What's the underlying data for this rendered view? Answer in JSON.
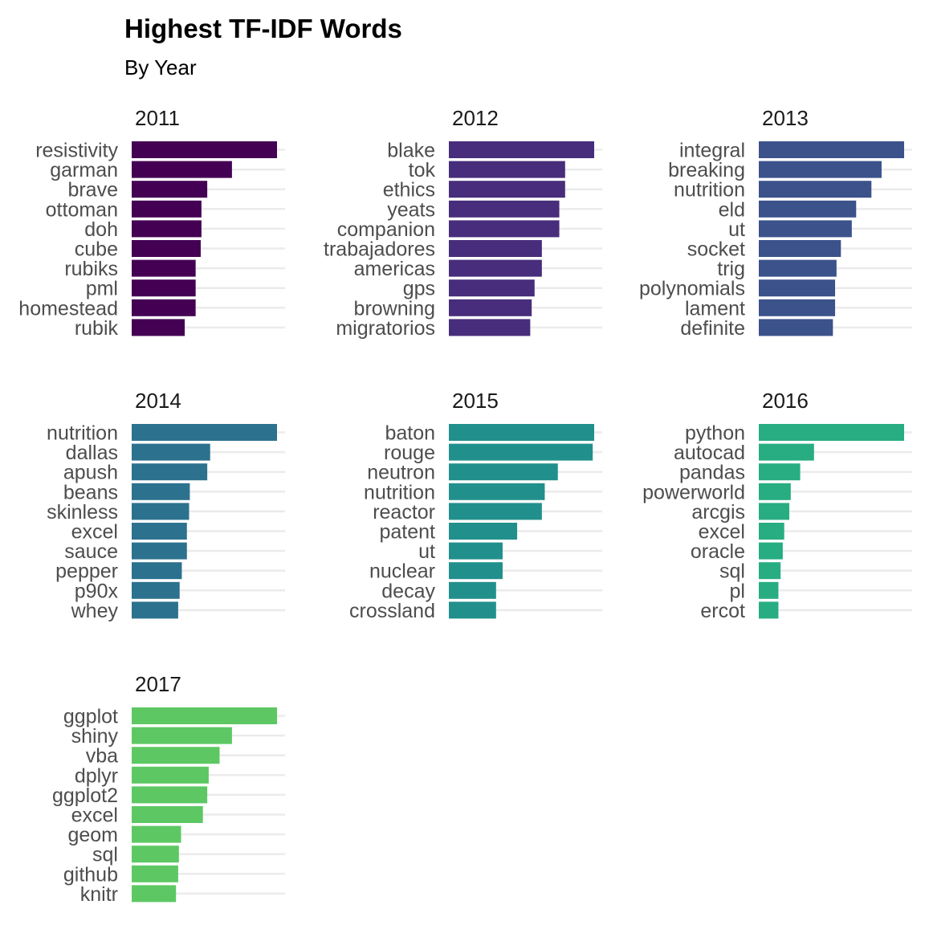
{
  "chart_data": {
    "type": "bar",
    "orientation": "horizontal",
    "title": "Highest TF-IDF Words",
    "subtitle": "By Year",
    "grid": "horizontal-only",
    "legend": "none",
    "panels": [
      {
        "label": "2011",
        "color": "#440154",
        "categories": [
          "resistivity",
          "garman",
          "brave",
          "ottoman",
          "doh",
          "cube",
          "rubiks",
          "pml",
          "homestead",
          "rubik"
        ],
        "values": [
          1.0,
          0.69,
          0.52,
          0.48,
          0.48,
          0.475,
          0.44,
          0.44,
          0.44,
          0.365
        ]
      },
      {
        "label": "2012",
        "color": "#472d7b",
        "categories": [
          "blake",
          "tok",
          "ethics",
          "yeats",
          "companion",
          "trabajadores",
          "americas",
          "gps",
          "browning",
          "migratorios"
        ],
        "values": [
          1.0,
          0.8,
          0.8,
          0.76,
          0.76,
          0.64,
          0.64,
          0.59,
          0.57,
          0.56
        ]
      },
      {
        "label": "2013",
        "color": "#3b528b",
        "categories": [
          "integral",
          "breaking",
          "nutrition",
          "eld",
          "ut",
          "socket",
          "trig",
          "polynomials",
          "lament",
          "definite"
        ],
        "values": [
          1.0,
          0.845,
          0.775,
          0.67,
          0.64,
          0.565,
          0.535,
          0.525,
          0.525,
          0.51
        ]
      },
      {
        "label": "2014",
        "color": "#2c728e",
        "categories": [
          "nutrition",
          "dallas",
          "apush",
          "beans",
          "skinless",
          "excel",
          "sauce",
          "pepper",
          "p90x",
          "whey"
        ],
        "values": [
          1.0,
          0.54,
          0.52,
          0.4,
          0.395,
          0.38,
          0.38,
          0.345,
          0.33,
          0.32
        ]
      },
      {
        "label": "2015",
        "color": "#21908c",
        "categories": [
          "baton",
          "rouge",
          "neutron",
          "nutrition",
          "reactor",
          "patent",
          "ut",
          "nuclear",
          "decay",
          "crossland"
        ],
        "values": [
          1.0,
          0.99,
          0.75,
          0.66,
          0.64,
          0.47,
          0.37,
          0.37,
          0.325,
          0.325
        ]
      },
      {
        "label": "2016",
        "color": "#27ad81",
        "categories": [
          "python",
          "autocad",
          "pandas",
          "powerworld",
          "arcgis",
          "excel",
          "oracle",
          "sql",
          "pl",
          "ercot"
        ],
        "values": [
          1.0,
          0.38,
          0.285,
          0.22,
          0.21,
          0.175,
          0.165,
          0.15,
          0.135,
          0.135
        ]
      },
      {
        "label": "2017",
        "color": "#5dc863",
        "categories": [
          "ggplot",
          "shiny",
          "vba",
          "dplyr",
          "ggplot2",
          "excel",
          "geom",
          "sql",
          "github",
          "knitr"
        ],
        "values": [
          1.0,
          0.69,
          0.605,
          0.53,
          0.52,
          0.49,
          0.34,
          0.325,
          0.32,
          0.305
        ]
      }
    ]
  }
}
